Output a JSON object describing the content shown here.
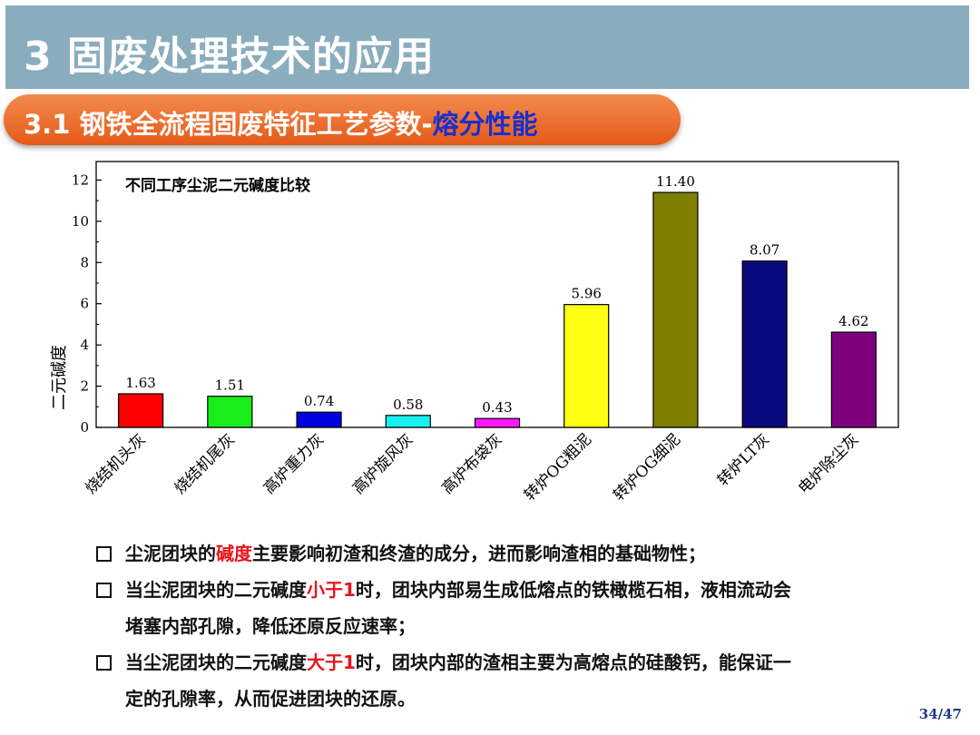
{
  "header": {
    "title": "3 固废处理技术的应用"
  },
  "section": {
    "title_main": "3.1 钢铁全流程固废特征工艺参数-",
    "title_highlight": "熔分性能"
  },
  "chart_data": {
    "type": "bar",
    "title": "不同工序尘泥二元碱度比较",
    "ylabel": "二元碱度",
    "xlabel": "",
    "ylim": [
      0,
      12.9
    ],
    "yticks": [
      0,
      2,
      4,
      6,
      8,
      10,
      12
    ],
    "categories": [
      "烧结机头灰",
      "烧结机尾灰",
      "高炉重力灰",
      "高炉旋风灰",
      "高炉布袋灰",
      "转炉OG粗泥",
      "转炉OG细泥",
      "转炉LT灰",
      "电炉除尘灰"
    ],
    "values": [
      1.63,
      1.51,
      0.74,
      0.58,
      0.43,
      5.96,
      11.4,
      8.07,
      4.62
    ],
    "value_labels": [
      "1.63",
      "1.51",
      "0.74",
      "0.58",
      "0.43",
      "5.96",
      "11.40",
      "8.07",
      "4.62"
    ],
    "colors": [
      "#ff0000",
      "#1aee1a",
      "#0000e0",
      "#18f0f0",
      "#ff18ff",
      "#ffff14",
      "#7f7f00",
      "#0a0a7f",
      "#7f007f"
    ],
    "grid": false
  },
  "bullets": [
    {
      "parts": [
        {
          "t": "尘泥团块的"
        },
        {
          "t": "碱度",
          "red": true
        },
        {
          "t": "主要影响初渣和终渣的成分，进而影响渣相的基础物性；"
        }
      ]
    },
    {
      "parts": [
        {
          "t": "当尘泥团块的二元碱度"
        },
        {
          "t": "小于1",
          "red": true
        },
        {
          "t": "时，团块内部易生成低熔点的铁橄榄石相，液相流动会"
        }
      ],
      "cont": "堵塞内部孔隙，降低还原反应速率；"
    },
    {
      "parts": [
        {
          "t": "当尘泥团块的二元碱度"
        },
        {
          "t": "大于1",
          "red": true
        },
        {
          "t": "时，团块内部的渣相主要为高熔点的硅酸钙，能保证一"
        }
      ],
      "cont": "定的孔隙率，从而促进团块的还原。"
    }
  ],
  "page": {
    "number": "34/47"
  }
}
